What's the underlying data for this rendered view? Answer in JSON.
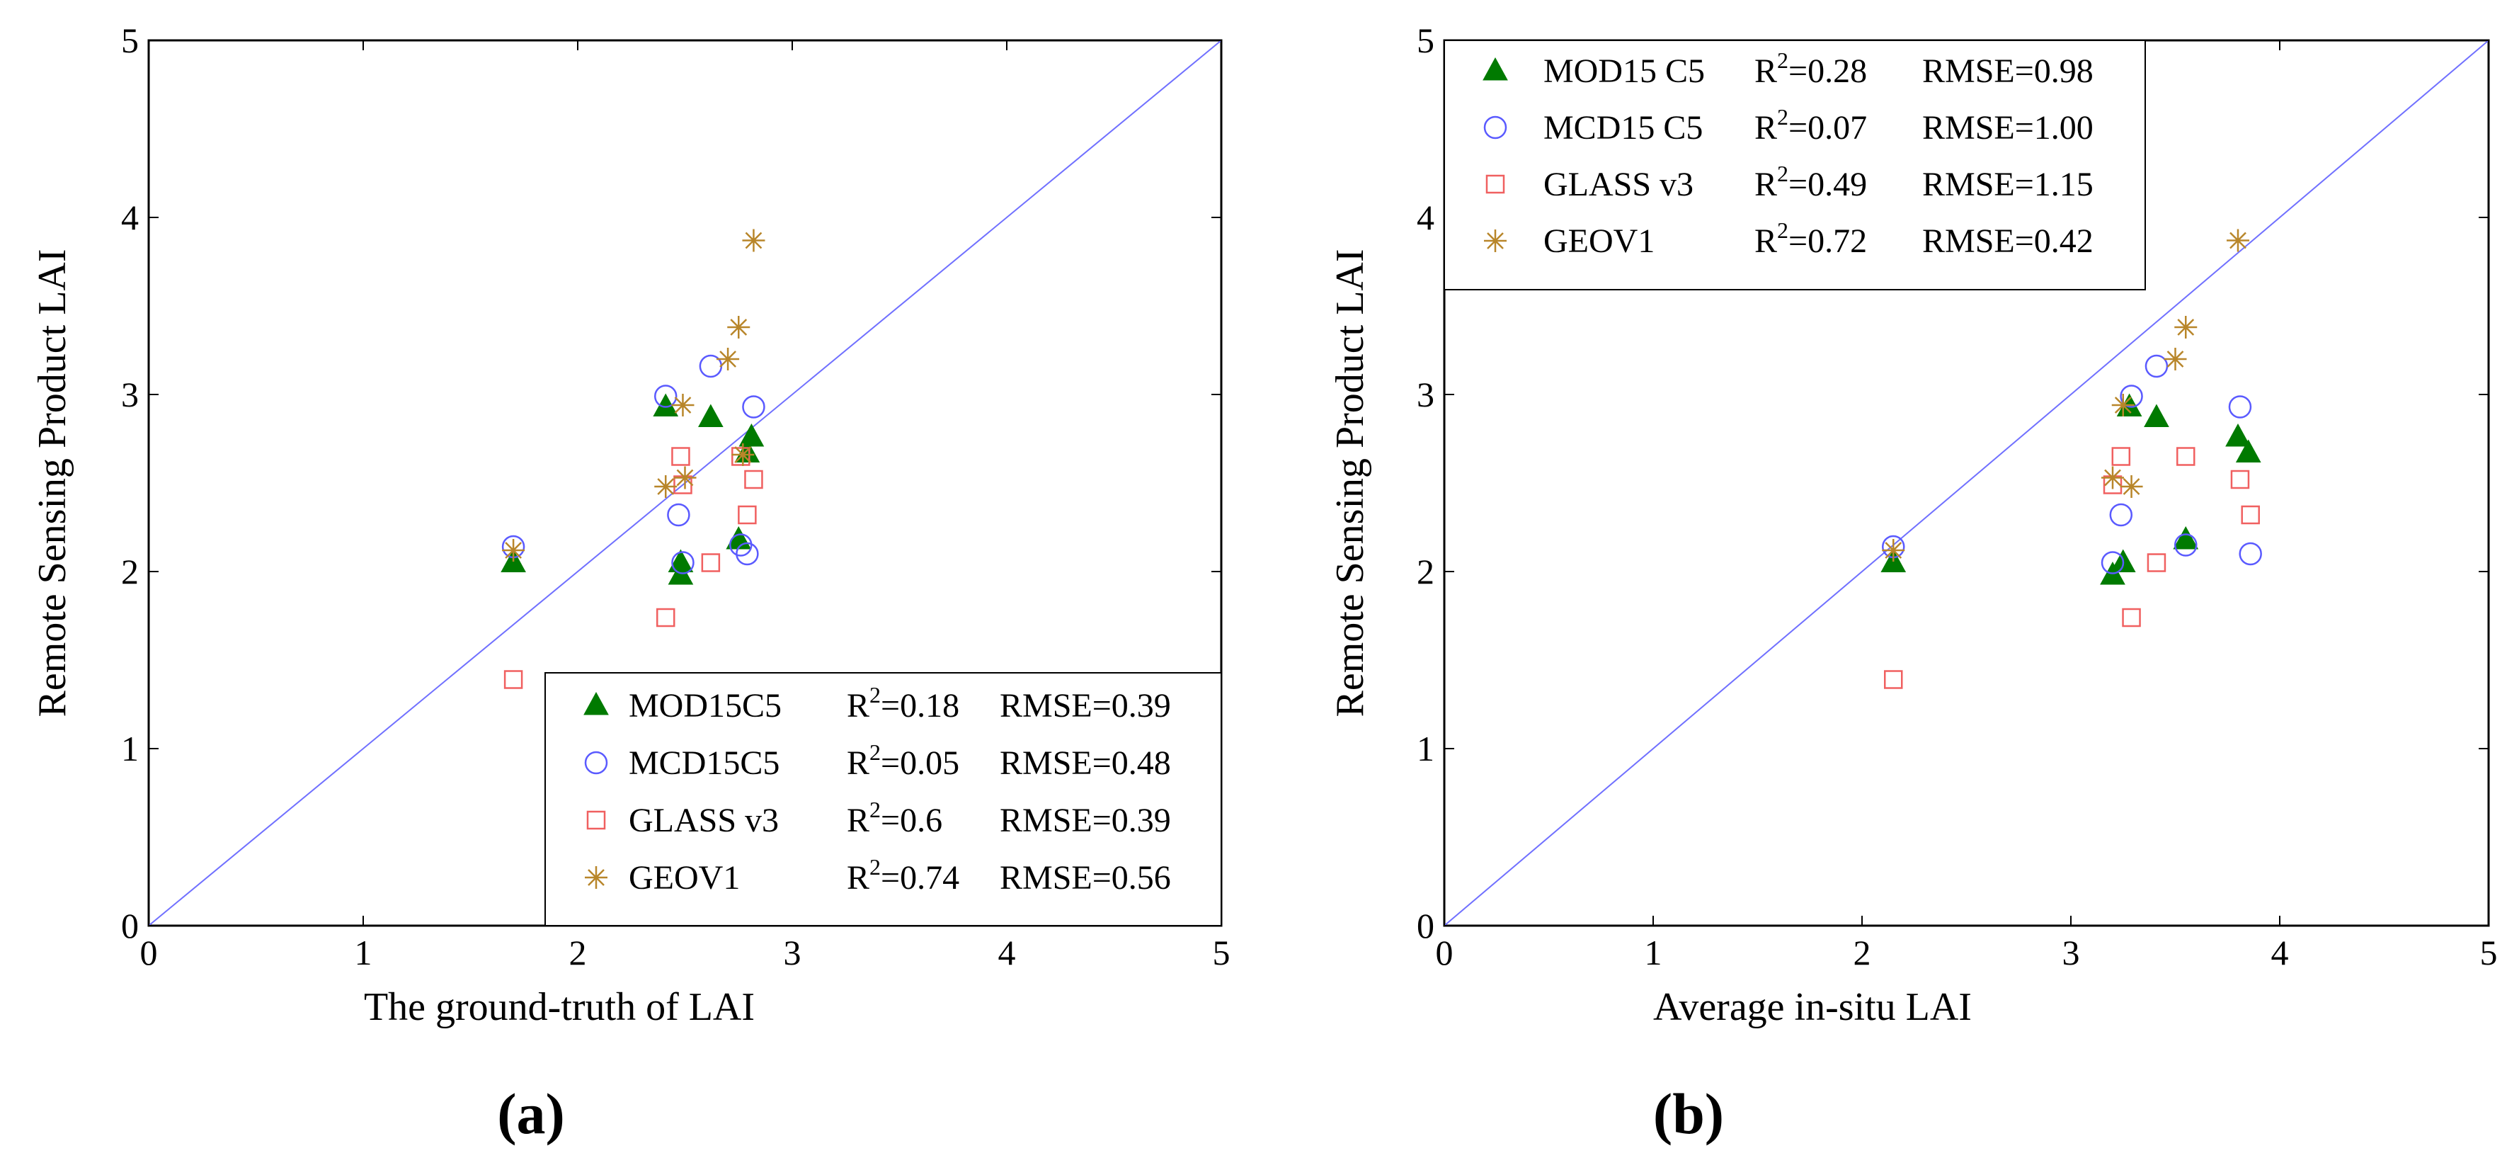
{
  "colors": {
    "mod": "#007a00",
    "mcd": "#5a5aff",
    "glass": "#f06060",
    "geov": "#b8862a",
    "line": "#7070ff"
  },
  "chart_data": [
    {
      "type": "scatter",
      "panel_label": "(a)",
      "xlabel": "The ground-truth of LAI",
      "ylabel": "Remote Sensing Product LAI",
      "xlim": [
        0,
        5
      ],
      "ylim": [
        0,
        5
      ],
      "ticks": [
        "0",
        "1",
        "2",
        "3",
        "4",
        "5"
      ],
      "reference_line": "1:1",
      "legend_position": "bottom-right",
      "series": [
        {
          "name": "MOD15C5",
          "r2": "0.18",
          "rmse": "0.39",
          "marker": "triangle",
          "points": [
            [
              1.7,
              2.05
            ],
            [
              2.41,
              2.93
            ],
            [
              2.48,
              2.05
            ],
            [
              2.48,
              1.98
            ],
            [
              2.62,
              2.87
            ],
            [
              2.75,
              2.18
            ],
            [
              2.79,
              2.67
            ],
            [
              2.81,
              2.76
            ]
          ]
        },
        {
          "name": "MCD15C5",
          "r2": "0.05",
          "rmse": "0.48",
          "marker": "circle",
          "points": [
            [
              1.7,
              2.14
            ],
            [
              2.41,
              2.99
            ],
            [
              2.47,
              2.32
            ],
            [
              2.49,
              2.05
            ],
            [
              2.62,
              3.16
            ],
            [
              2.76,
              2.15
            ],
            [
              2.79,
              2.1
            ],
            [
              2.82,
              2.93
            ]
          ]
        },
        {
          "name": "GLASS v3",
          "r2": "0.6",
          "rmse": "0.39",
          "marker": "square",
          "points": [
            [
              1.7,
              1.39
            ],
            [
              2.41,
              1.74
            ],
            [
              2.48,
              2.65
            ],
            [
              2.49,
              2.49
            ],
            [
              2.62,
              2.05
            ],
            [
              2.76,
              2.65
            ],
            [
              2.79,
              2.32
            ],
            [
              2.82,
              2.52
            ]
          ]
        },
        {
          "name": "GEOV1",
          "r2": "0.74",
          "rmse": "0.56",
          "marker": "star",
          "points": [
            [
              1.7,
              2.12
            ],
            [
              2.41,
              2.48
            ],
            [
              2.49,
              2.94
            ],
            [
              2.5,
              2.53
            ],
            [
              2.7,
              3.2
            ],
            [
              2.75,
              3.38
            ],
            [
              2.82,
              3.87
            ],
            [
              2.77,
              2.66
            ]
          ]
        }
      ]
    },
    {
      "type": "scatter",
      "panel_label": "(b)",
      "xlabel": "Average in-situ LAI",
      "ylabel": "Remote Sensing Product LAI",
      "xlim": [
        0,
        5
      ],
      "ylim": [
        0,
        5
      ],
      "ticks": [
        "0",
        "1",
        "2",
        "3",
        "4",
        "5"
      ],
      "reference_line": "1:1",
      "legend_position": "top-left",
      "series": [
        {
          "name": "MOD15 C5",
          "r2": "0.28",
          "rmse": "0.98",
          "marker": "triangle",
          "points": [
            [
              2.15,
              2.05
            ],
            [
              3.2,
              1.98
            ],
            [
              3.25,
              2.05
            ],
            [
              3.28,
              2.93
            ],
            [
              3.41,
              2.87
            ],
            [
              3.55,
              2.18
            ],
            [
              3.8,
              2.76
            ],
            [
              3.85,
              2.67
            ]
          ]
        },
        {
          "name": "MCD15 C5",
          "r2": "0.07",
          "rmse": "1.00",
          "marker": "circle",
          "points": [
            [
              2.15,
              2.14
            ],
            [
              3.2,
              2.05
            ],
            [
              3.24,
              2.32
            ],
            [
              3.29,
              2.99
            ],
            [
              3.41,
              3.16
            ],
            [
              3.55,
              2.15
            ],
            [
              3.81,
              2.93
            ],
            [
              3.86,
              2.1
            ]
          ]
        },
        {
          "name": "GLASS v3",
          "r2": "0.49",
          "rmse": "1.15",
          "marker": "square",
          "points": [
            [
              2.15,
              1.39
            ],
            [
              3.2,
              2.49
            ],
            [
              3.24,
              2.65
            ],
            [
              3.29,
              1.74
            ],
            [
              3.41,
              2.05
            ],
            [
              3.55,
              2.65
            ],
            [
              3.81,
              2.52
            ],
            [
              3.86,
              2.32
            ]
          ]
        },
        {
          "name": "GEOV1",
          "r2": "0.72",
          "rmse": "0.42",
          "marker": "star",
          "points": [
            [
              2.15,
              2.12
            ],
            [
              3.2,
              2.53
            ],
            [
              3.25,
              2.94
            ],
            [
              3.29,
              2.48
            ],
            [
              3.5,
              3.2
            ],
            [
              3.55,
              3.38
            ],
            [
              3.8,
              3.87
            ]
          ]
        }
      ]
    }
  ]
}
